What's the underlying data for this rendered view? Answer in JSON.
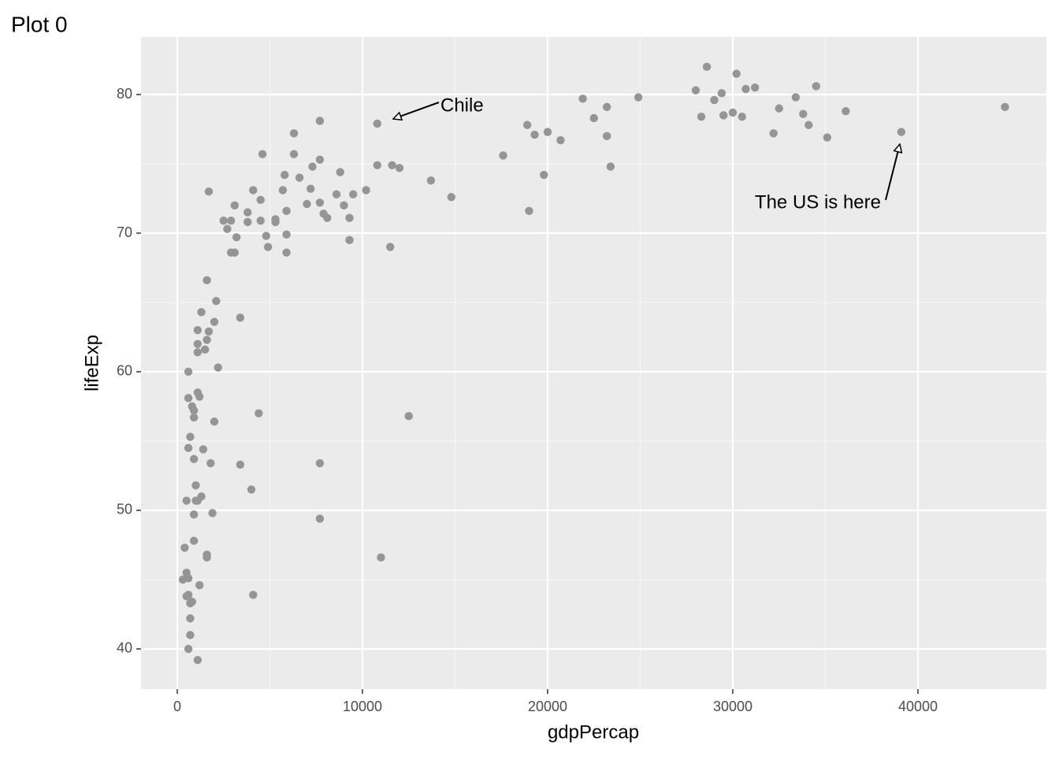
{
  "chart_data": {
    "type": "scatter",
    "title": "Plot 0",
    "x_label": "gdpPercap",
    "y_label": "lifeExp",
    "color": "#959595",
    "grid": true,
    "xlim": [
      -1957,
      46936
    ],
    "ylim": [
      37.1,
      84.15
    ],
    "xticks": [
      0,
      10000,
      20000,
      30000,
      40000
    ],
    "yticks": [
      40,
      50,
      60,
      70,
      80
    ],
    "annotations": [
      "Chile",
      "The US is here"
    ],
    "x": [
      44700,
      39100,
      36100,
      34500,
      34100,
      33800,
      33400,
      32500,
      32200,
      31200,
      30700,
      30500,
      30200,
      30000,
      29500,
      29400,
      29000,
      28600,
      28300,
      28000,
      35100,
      24900,
      23400,
      23200,
      23200,
      22500,
      21900,
      20700,
      20000,
      19800,
      19300,
      19000,
      18900,
      17600,
      14800,
      13700,
      12500,
      12000,
      11600,
      11500,
      11000,
      10800,
      10800,
      10200,
      9500,
      9300,
      9300,
      9000,
      8800,
      8600,
      8100,
      7900,
      7700,
      7700,
      7700,
      7700,
      7700,
      7300,
      7200,
      7000,
      6600,
      6300,
      6300,
      5900,
      5900,
      5900,
      5800,
      5700,
      5300,
      5300,
      4900,
      4800,
      4600,
      4500,
      4500,
      4100,
      4100,
      4000,
      3800,
      3800,
      3400,
      3400,
      3200,
      3100,
      2900,
      3100,
      2900,
      2700,
      2500,
      4400,
      2200,
      2100,
      2000,
      2000,
      1900,
      1800,
      1700,
      1700,
      1600,
      1600,
      1500,
      1400,
      1300,
      1600,
      1600,
      1300,
      1200,
      1200,
      1100,
      1000,
      1100,
      1100,
      1100,
      1100,
      1100,
      1000,
      900,
      900,
      900,
      900,
      900,
      800,
      800,
      700,
      700,
      700,
      700,
      600,
      600,
      600,
      600,
      600,
      600,
      500,
      500,
      500,
      400,
      300
    ],
    "y": [
      79.1,
      77.3,
      78.8,
      80.6,
      77.8,
      78.6,
      79.8,
      79.0,
      77.2,
      80.5,
      80.4,
      78.4,
      81.5,
      78.7,
      78.5,
      80.1,
      79.6,
      82.0,
      78.4,
      80.3,
      76.9,
      79.8,
      74.8,
      77.0,
      79.1,
      78.3,
      79.7,
      76.7,
      77.3,
      74.2,
      77.1,
      71.6,
      77.8,
      75.6,
      72.6,
      73.8,
      56.8,
      74.7,
      74.9,
      69.0,
      46.6,
      74.9,
      77.9,
      73.1,
      72.8,
      69.5,
      71.1,
      72.0,
      74.4,
      72.8,
      71.1,
      71.4,
      78.1,
      75.3,
      72.2,
      53.4,
      49.4,
      74.8,
      73.2,
      72.1,
      74.0,
      77.2,
      75.7,
      69.9,
      71.6,
      68.6,
      74.2,
      73.1,
      70.8,
      71.0,
      69.0,
      69.8,
      75.7,
      72.4,
      70.9,
      73.1,
      43.9,
      51.5,
      71.5,
      70.8,
      53.3,
      63.9,
      69.7,
      68.6,
      68.6,
      72.0,
      70.9,
      70.3,
      70.9,
      57.0,
      60.3,
      65.1,
      63.6,
      56.4,
      49.8,
      53.4,
      73.0,
      62.9,
      66.6,
      62.3,
      61.6,
      54.4,
      64.3,
      46.8,
      46.6,
      51.0,
      44.6,
      58.2,
      50.7,
      50.7,
      62.0,
      63.0,
      61.4,
      39.2,
      58.5,
      51.8,
      47.8,
      53.7,
      49.7,
      57.2,
      56.7,
      57.5,
      43.4,
      43.3,
      55.3,
      41.0,
      42.2,
      40.0,
      45.1,
      60.0,
      58.1,
      54.5,
      43.9,
      50.7,
      45.5,
      43.8,
      47.3,
      45.0
    ]
  }
}
